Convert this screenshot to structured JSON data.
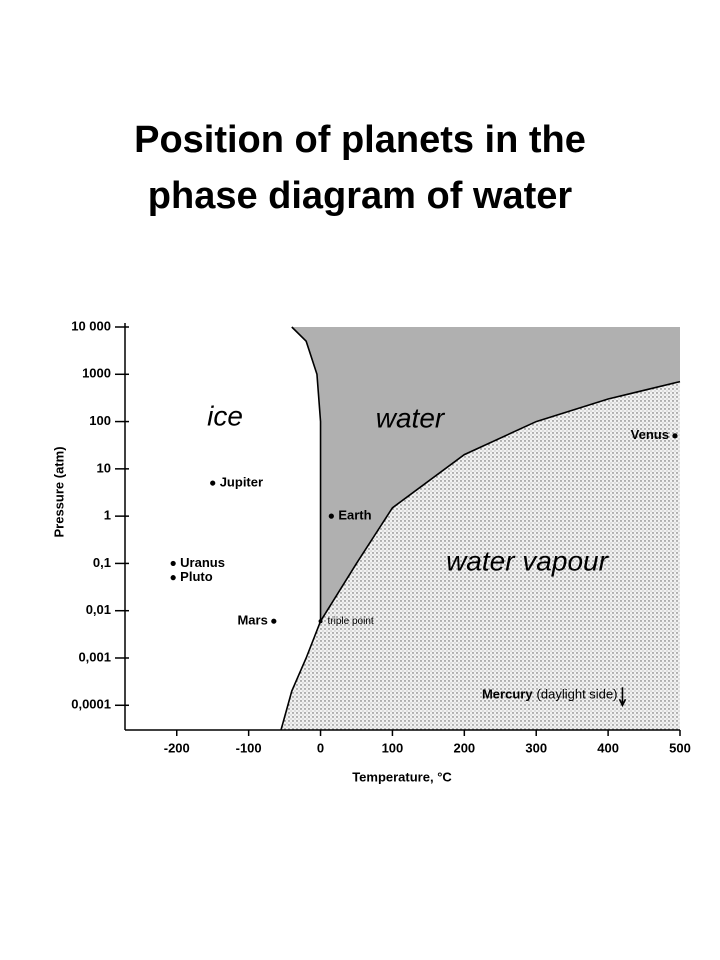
{
  "chart_data": {
    "type": "scatter",
    "title": "Position of planets in the phase diagram of water",
    "x_label": "Temperature, °C",
    "y_label": "Pressure (atm)",
    "y_scale": "log",
    "xlim": [
      -272,
      500
    ],
    "ylim": [
      3e-05,
      10000
    ],
    "xticks": [
      -200,
      -100,
      0,
      100,
      200,
      300,
      400,
      500
    ],
    "yticks": [
      {
        "value": 10000,
        "label": "10 000"
      },
      1000,
      100,
      10,
      1,
      {
        "value": 0.1,
        "label": "0,1"
      },
      {
        "value": 0.01,
        "label": "0,01"
      },
      {
        "value": 0.001,
        "label": "0,001"
      },
      {
        "value": 0.0001,
        "label": "0,0001"
      }
    ],
    "points": [
      {
        "name": "Jupiter",
        "x": -150,
        "y": 5
      },
      {
        "name": "Earth",
        "x": 15,
        "y": 1
      },
      {
        "name": "Uranus",
        "x": -205,
        "y": 0.1
      },
      {
        "name": "Pluto",
        "x": -205,
        "y": 0.05
      },
      {
        "name": "Mars",
        "x": -65,
        "y": 0.006
      },
      {
        "name": "Venus",
        "x": 493,
        "y": 50
      },
      {
        "name": "triple point",
        "x": 0,
        "y": 0.006
      },
      {
        "name": "Mercury",
        "note": "(daylight side)",
        "x": 420,
        "y": 0.0001,
        "marker": "arrow"
      }
    ],
    "regions": [
      "ice",
      "water",
      "water vapour"
    ],
    "boundaries": [
      {
        "x": [
          -40,
          -20,
          -5,
          0,
          0
        ],
        "y": [
          10000,
          5000,
          1000,
          100,
          0.006
        ]
      },
      {
        "x": [
          0,
          50,
          100,
          200,
          300,
          400,
          500
        ],
        "y": [
          0.006,
          0.1,
          1.5,
          20,
          100,
          300,
          700
        ]
      },
      {
        "x": [
          -55,
          -40,
          -20,
          0
        ],
        "y": [
          3e-05,
          0.0002,
          0.001,
          0.006
        ]
      }
    ]
  }
}
